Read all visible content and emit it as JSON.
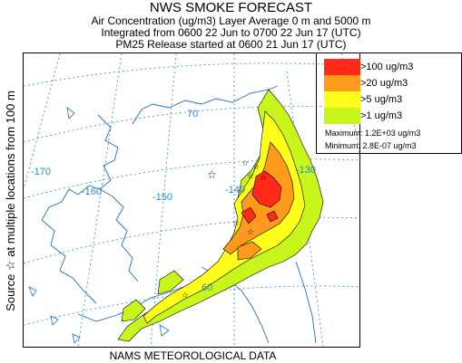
{
  "header": {
    "title": "NWS SMOKE FORECAST",
    "line1": "Air Concentration (ug/m3) Layer Average    0 m and  5000 m",
    "line2": "Integrated from 0600 22 Jun to 0700 22 Jun 17 (UTC)",
    "line3": "PM25 Release started at 0600 21 Jun 17 (UTC)"
  },
  "side_label": "Source ☆  at multiple locations     from   100 m",
  "footer": "NAMS METEOROLOGICAL DATA",
  "legend": {
    "entries": [
      {
        "label": ">100 ug/m3",
        "color": "#ff2a1a"
      },
      {
        "label": ">20 ug/m3",
        "color": "#ff9a1a"
      },
      {
        "label": ">5 ug/m3",
        "color": "#ffff1a"
      },
      {
        "label": ">1 ug/m3",
        "color": "#c8f51a"
      }
    ],
    "maximum": "Maximum: 1.2E+03 ug/m3",
    "minimum": "Minimum: 2.8E-07 ug/m3"
  },
  "map": {
    "graticule_labels": {
      "lon_170": "-170",
      "lon_160": "-160",
      "lon_150": "-150",
      "lon_140": "-140",
      "lon_130": "-130",
      "lat_70": "70",
      "lat_60": "60"
    },
    "source_marker": "☆",
    "colors": {
      "grid": "#2a8cc4",
      "coast": "#1f6fbf"
    }
  }
}
